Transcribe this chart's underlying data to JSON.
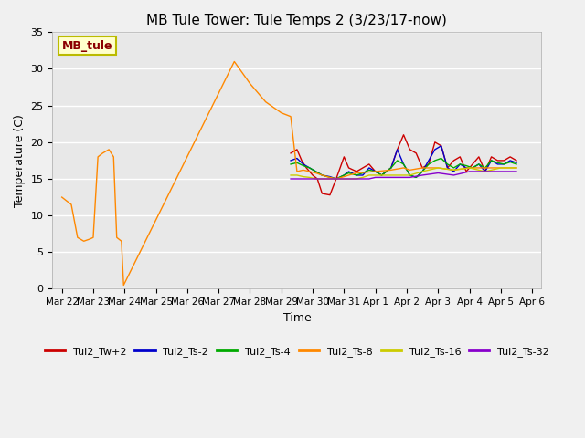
{
  "title": "MB Tule Tower: Tule Temps 2 (3/23/17-now)",
  "xlabel": "Time",
  "ylabel": "Temperature (C)",
  "ylim": [
    0,
    35
  ],
  "yticks": [
    0,
    5,
    10,
    15,
    20,
    25,
    30,
    35
  ],
  "background_color": "#f0f0f0",
  "plot_bg_color": "#e8e8e8",
  "grid_color": "#ffffff",
  "annotation_label": "MB_tule",
  "annotation_bg": "#ffffcc",
  "annotation_border": "#bbbb00",
  "legend_entries": [
    "Tul2_Tw+2",
    "Tul2_Ts-2",
    "Tul2_Ts-4",
    "Tul2_Ts-8",
    "Tul2_Ts-16",
    "Tul2_Ts-32"
  ],
  "legend_colors": [
    "#cc0000",
    "#0000cc",
    "#00aa00",
    "#ff8800",
    "#cccc00",
    "#8800cc"
  ],
  "line_width": 1.0,
  "series": {
    "Tul2_Tw+2": {
      "color": "#cc0000",
      "x_days": [
        7.3,
        7.5,
        7.65,
        7.8,
        8.0,
        8.15,
        8.3,
        8.55,
        8.75,
        9.0,
        9.15,
        9.4,
        9.6,
        9.8,
        10.0,
        10.2,
        10.5,
        10.7,
        10.9,
        11.1,
        11.3,
        11.5,
        11.7,
        11.9,
        12.1,
        12.3,
        12.5,
        12.7,
        12.9,
        13.1,
        13.3,
        13.5,
        13.7,
        13.9,
        14.1,
        14.3,
        14.5
      ],
      "y": [
        18.5,
        19.0,
        17.5,
        16.5,
        15.5,
        15.0,
        13.0,
        12.8,
        15.0,
        18.0,
        16.5,
        16.0,
        16.5,
        17.0,
        16.0,
        15.5,
        16.5,
        19.0,
        21.0,
        19.0,
        18.5,
        16.5,
        17.0,
        20.0,
        19.5,
        16.5,
        17.5,
        18.0,
        16.0,
        17.0,
        18.0,
        16.0,
        18.0,
        17.5,
        17.5,
        18.0,
        17.5
      ]
    },
    "Tul2_Ts-2": {
      "color": "#0000cc",
      "x_days": [
        7.3,
        7.5,
        7.7,
        7.9,
        8.1,
        8.3,
        8.55,
        8.75,
        9.0,
        9.15,
        9.4,
        9.6,
        9.8,
        10.0,
        10.2,
        10.5,
        10.7,
        10.9,
        11.1,
        11.3,
        11.5,
        11.7,
        11.9,
        12.1,
        12.3,
        12.5,
        12.7,
        12.9,
        13.1,
        13.3,
        13.5,
        13.7,
        13.9,
        14.1,
        14.3,
        14.5
      ],
      "y": [
        17.5,
        17.8,
        17.0,
        16.5,
        16.0,
        15.5,
        15.3,
        15.0,
        15.5,
        16.0,
        15.5,
        15.5,
        16.5,
        16.0,
        15.5,
        16.5,
        19.0,
        17.0,
        15.5,
        15.2,
        16.0,
        17.5,
        19.0,
        19.5,
        16.5,
        16.0,
        17.0,
        16.5,
        16.5,
        17.0,
        16.0,
        17.5,
        17.0,
        17.0,
        17.5,
        17.2
      ]
    },
    "Tul2_Ts-4": {
      "color": "#00aa00",
      "x_days": [
        7.3,
        7.5,
        7.7,
        7.9,
        8.1,
        8.3,
        8.55,
        8.75,
        9.0,
        9.15,
        9.4,
        9.6,
        9.8,
        10.0,
        10.2,
        10.5,
        10.7,
        10.9,
        11.1,
        11.3,
        11.5,
        11.7,
        11.9,
        12.1,
        12.3,
        12.5,
        12.7,
        12.9,
        13.1,
        13.3,
        13.5,
        13.7,
        13.9,
        14.1,
        14.3,
        14.5
      ],
      "y": [
        17.0,
        17.2,
        16.8,
        16.5,
        16.0,
        15.5,
        15.2,
        15.0,
        15.5,
        15.8,
        15.5,
        15.8,
        16.2,
        16.0,
        15.5,
        16.5,
        17.5,
        17.0,
        15.5,
        15.2,
        16.0,
        17.0,
        17.5,
        17.8,
        17.0,
        16.5,
        17.0,
        16.8,
        16.5,
        17.0,
        16.5,
        17.5,
        17.2,
        17.0,
        17.3,
        17.0
      ]
    },
    "Tul2_Ts-8": {
      "color": "#ff8800",
      "x_days": [
        0.0,
        0.3,
        0.5,
        0.7,
        0.9,
        1.0,
        1.15,
        1.3,
        1.5,
        1.65,
        1.75,
        1.9,
        1.97,
        5.5,
        6.0,
        6.5,
        7.0,
        7.3,
        7.5,
        7.7,
        7.9,
        8.1,
        8.3,
        8.55,
        8.75,
        9.0,
        9.15,
        9.4,
        10.0,
        10.5,
        10.9,
        11.1,
        11.5,
        12.0,
        12.5,
        13.0,
        13.5,
        14.0,
        14.5
      ],
      "y": [
        12.5,
        11.5,
        7.0,
        6.5,
        6.8,
        7.0,
        18.0,
        18.5,
        19.0,
        18.0,
        7.0,
        6.5,
        0.5,
        31.0,
        28.0,
        25.5,
        24.0,
        23.5,
        16.0,
        16.2,
        16.0,
        15.8,
        15.5,
        15.2,
        15.0,
        15.3,
        15.5,
        15.8,
        16.0,
        16.2,
        16.5,
        16.2,
        16.5,
        16.5,
        16.2,
        16.5,
        16.5,
        16.5,
        16.5
      ]
    },
    "Tul2_Ts-16": {
      "color": "#cccc00",
      "x_days": [
        7.3,
        7.5,
        7.7,
        7.9,
        8.1,
        8.3,
        8.55,
        8.75,
        9.0,
        9.15,
        9.4,
        9.6,
        9.8,
        10.0,
        10.2,
        10.5,
        10.7,
        10.9,
        11.1,
        11.5,
        12.0,
        12.5,
        13.0,
        13.5,
        14.0,
        14.5
      ],
      "y": [
        15.5,
        15.5,
        15.3,
        15.2,
        15.0,
        15.0,
        15.0,
        15.0,
        15.0,
        15.0,
        15.0,
        15.2,
        15.5,
        15.5,
        15.5,
        15.5,
        15.5,
        15.5,
        15.5,
        16.0,
        16.5,
        16.2,
        16.5,
        16.0,
        16.5,
        16.5
      ]
    },
    "Tul2_Ts-32": {
      "color": "#8800cc",
      "x_days": [
        7.3,
        7.5,
        7.7,
        7.9,
        8.1,
        8.3,
        8.55,
        8.75,
        9.0,
        9.15,
        9.4,
        9.6,
        9.8,
        10.0,
        10.2,
        10.5,
        10.7,
        10.9,
        11.1,
        11.5,
        12.0,
        12.5,
        13.0,
        13.5,
        14.0,
        14.5
      ],
      "y": [
        15.0,
        15.0,
        15.0,
        15.0,
        15.0,
        15.0,
        15.0,
        15.0,
        15.0,
        15.0,
        15.0,
        15.0,
        15.0,
        15.2,
        15.2,
        15.2,
        15.2,
        15.2,
        15.2,
        15.5,
        15.8,
        15.5,
        16.0,
        16.0,
        16.0,
        16.0
      ]
    }
  },
  "xtick_positions": [
    0,
    1,
    2,
    3,
    4,
    5,
    6,
    7,
    8,
    9,
    10,
    11,
    12,
    13,
    14,
    15
  ],
  "xtick_labels": [
    "Mar 22",
    "Mar 23",
    "Mar 24",
    "Mar 25",
    "Mar 26",
    "Mar 27",
    "Mar 28",
    "Mar 29",
    "Mar 30",
    "Mar 31",
    "Apr 1",
    "Apr 2",
    "Apr 3",
    "Apr 4",
    "Apr 5",
    "Apr 6"
  ],
  "xlim": [
    -0.3,
    15.3
  ]
}
